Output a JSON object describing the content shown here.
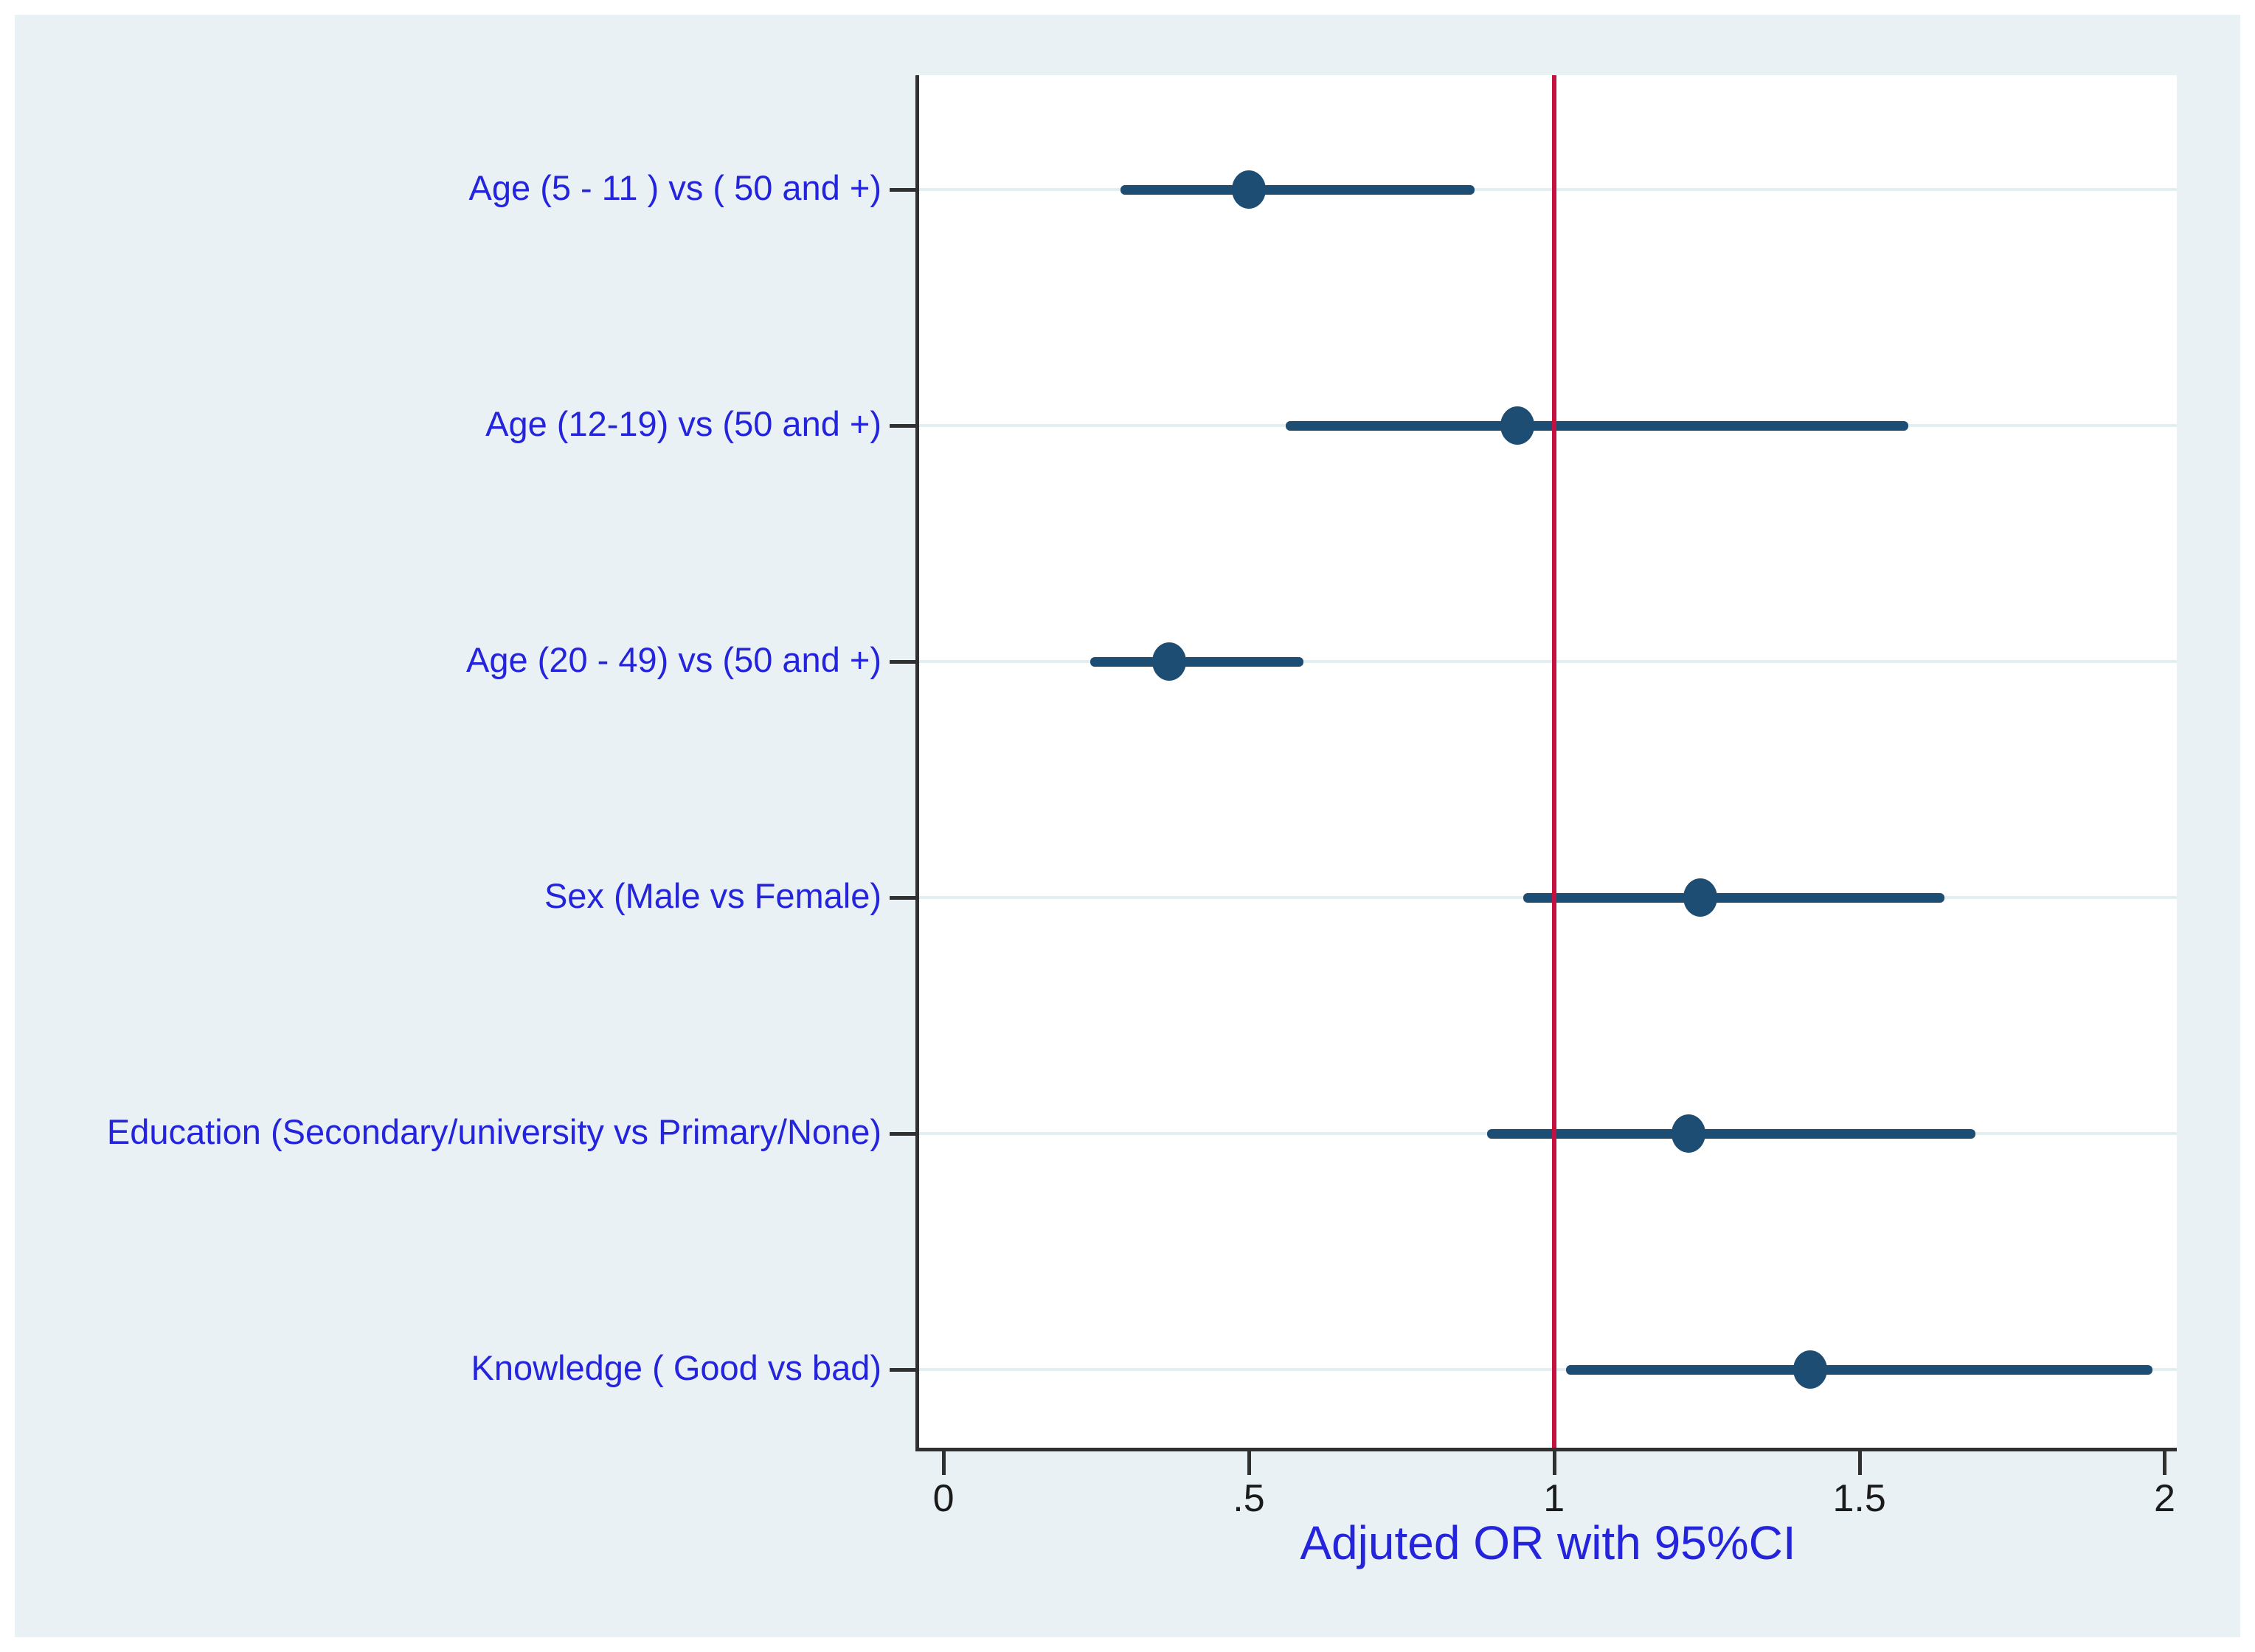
{
  "figure": {
    "outer_background": "#ffffff",
    "canvas_background": "#eaf1f4",
    "plot_background": "#ffffff",
    "axis_color": "#303030",
    "gridline_color": "#e2eef0",
    "marker_color": "#1d4d73",
    "ci_color": "#1d4d73",
    "reference_line_color": "#c31240",
    "category_label_color": "#2424dc",
    "tick_label_color": "#1a1a1a",
    "xlabel_color": "#2424dc"
  },
  "chart_data": {
    "type": "scatter",
    "subtype": "forest-plot",
    "title": "",
    "xlabel": "Adjuted OR with 95%CI",
    "ylabel": "",
    "grid": true,
    "legend": "none",
    "xlim": [
      -0.04,
      2.02
    ],
    "reference_line_x": 1,
    "x_ticks": [
      {
        "value": 0,
        "label": "0"
      },
      {
        "value": 0.5,
        "label": ".5"
      },
      {
        "value": 1,
        "label": "1"
      },
      {
        "value": 1.5,
        "label": "1.5"
      },
      {
        "value": 2,
        "label": "2"
      }
    ],
    "rows": [
      {
        "label": "Age (5 - 11 ) vs ( 50 and +)",
        "or": 0.5,
        "ci_low": 0.29,
        "ci_high": 0.87
      },
      {
        "label": "Age (12-19) vs (50 and +)",
        "or": 0.94,
        "ci_low": 0.56,
        "ci_high": 1.58
      },
      {
        "label": "Age (20 - 49) vs (50 and +)",
        "or": 0.37,
        "ci_low": 0.24,
        "ci_high": 0.59
      },
      {
        "label": "Sex (Male vs Female)",
        "or": 1.24,
        "ci_low": 0.95,
        "ci_high": 1.64
      },
      {
        "label": "Education (Secondary/university vs Primary/None)",
        "or": 1.22,
        "ci_low": 0.89,
        "ci_high": 1.69
      },
      {
        "label": "Knowledge ( Good vs bad)",
        "or": 1.42,
        "ci_low": 1.02,
        "ci_high": 1.98
      }
    ]
  }
}
